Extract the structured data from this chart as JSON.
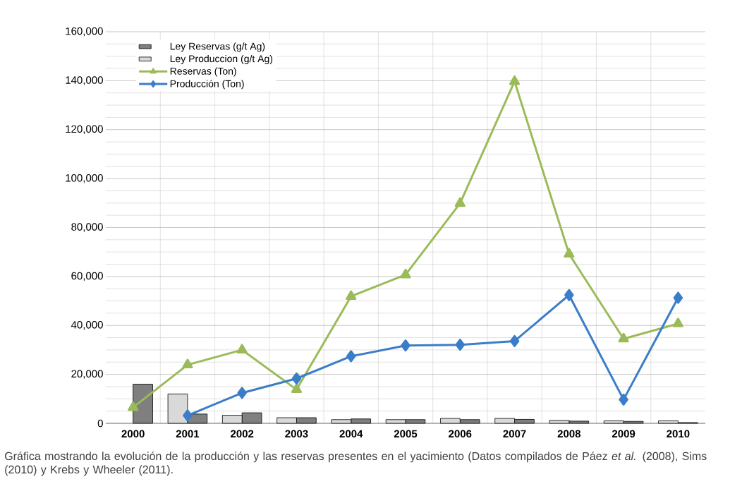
{
  "chart_data": {
    "type": "bar",
    "categories": [
      "2000",
      "2001",
      "2002",
      "2003",
      "2004",
      "2005",
      "2006",
      "2007",
      "2008",
      "2009",
      "2010"
    ],
    "series": [
      {
        "name": "Ley Reservas (g/t Ag)",
        "color": "#7f7f7f",
        "values": [
          16000,
          3800,
          4300,
          2300,
          1800,
          1500,
          1500,
          1600,
          900,
          800,
          300
        ]
      },
      {
        "name": "Ley Produccion (g/t Ag)",
        "color": "#d9d9d9",
        "values": [
          null,
          12000,
          3300,
          2300,
          1500,
          1500,
          2000,
          2000,
          1200,
          1000,
          1000
        ]
      },
      {
        "name": "Reservas (Ton)",
        "type": "line",
        "color": "#9bbb59",
        "marker": "triangle",
        "values": [
          6500,
          23900,
          30000,
          13800,
          51900,
          60700,
          89900,
          139700,
          69200,
          34500,
          40700
        ]
      },
      {
        "name": "Producción (Ton)",
        "type": "line",
        "color": "#3a7dc9",
        "marker": "diamond",
        "values": [
          null,
          3200,
          12400,
          18300,
          27400,
          31800,
          32100,
          33600,
          52400,
          9700,
          51300
        ]
      }
    ],
    "ylim": [
      0,
      160000
    ],
    "yticks": [
      0,
      {
        "value": 20000,
        "label": "20,000"
      },
      {
        "value": 40000,
        "label": "40,000"
      },
      {
        "value": 60000,
        "label": "60,000"
      },
      {
        "value": 80000,
        "label": "80,000"
      },
      {
        "value": 100000,
        "label": "100,000"
      },
      {
        "value": 120000,
        "label": "120,000"
      },
      {
        "value": 140000,
        "label": "140,000"
      },
      {
        "value": 160000,
        "label": "160,000"
      }
    ],
    "grid": true,
    "legend": "top left",
    "annotations": [
      "Gráfica mostrando la evolución de la producción y las reservas presentes en el yacimiento (Datos compilados de Páez *et al.* (2008), Sims (2010) y Krebs y Wheeler (2011)."
    ]
  }
}
